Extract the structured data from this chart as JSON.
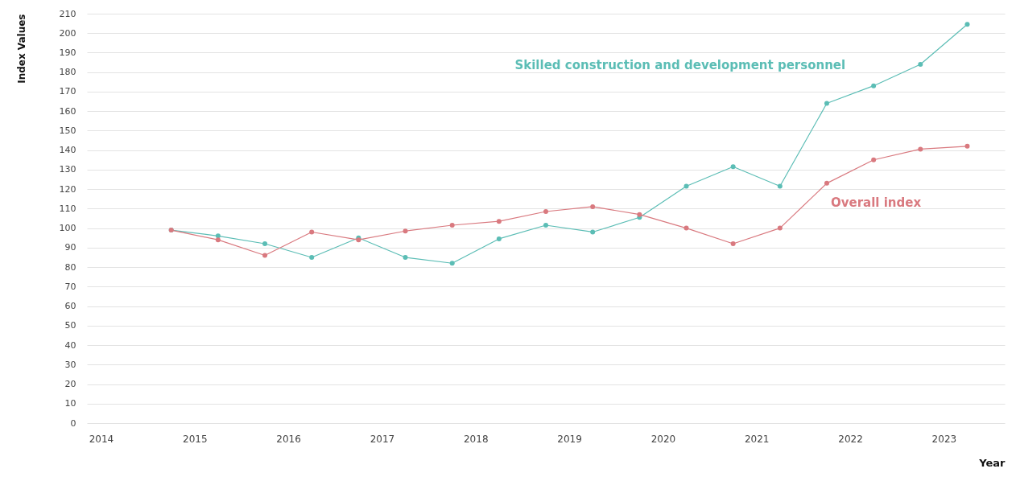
{
  "chart_data": {
    "type": "line",
    "xlabel": "Year",
    "ylabel": "Index Values",
    "x": [
      2014.75,
      2015.25,
      2015.75,
      2016.25,
      2016.75,
      2017.25,
      2017.75,
      2018.25,
      2018.75,
      2019.25,
      2019.75,
      2020.25,
      2020.75,
      2021.25,
      2021.75,
      2022.25,
      2022.75,
      2023.25
    ],
    "series": [
      {
        "name": "Skilled construction and development personnel",
        "color": "#5bbdb5",
        "values": [
          99,
          96,
          92,
          85,
          95,
          85,
          82,
          94.5,
          101.5,
          98,
          105.5,
          121.5,
          131.5,
          121.5,
          164,
          173,
          184,
          204.5
        ]
      },
      {
        "name": "Overall index",
        "color": "#d9797f",
        "values": [
          99,
          94,
          86,
          98,
          94,
          98.5,
          101.5,
          103.5,
          108.5,
          111,
          107,
          100,
          92,
          100,
          123,
          135,
          140.5,
          142
        ]
      }
    ],
    "xlim": [
      2013.85,
      2023.65
    ],
    "xticks": [
      2014,
      2015,
      2016,
      2017,
      2018,
      2019,
      2020,
      2021,
      2022,
      2023
    ],
    "ylim": [
      0,
      210
    ],
    "yticks": [
      0,
      10,
      20,
      30,
      40,
      50,
      60,
      70,
      80,
      90,
      100,
      110,
      120,
      130,
      140,
      150,
      160,
      170,
      180,
      190,
      200,
      210
    ],
    "grid": "y",
    "legend": false,
    "marker": "circle",
    "line_style": "solid"
  }
}
